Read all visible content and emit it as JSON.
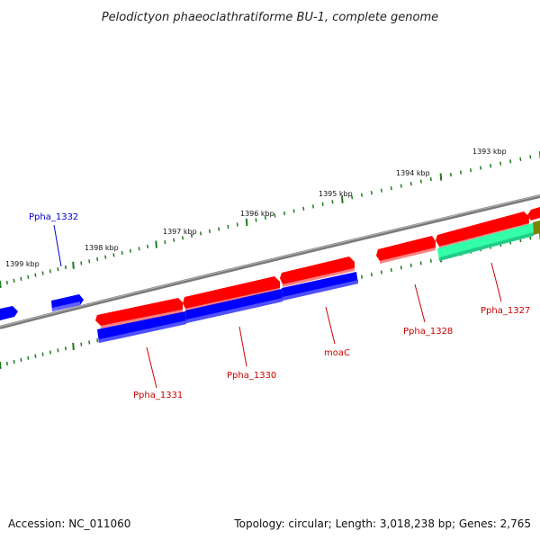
{
  "title": "Pelodictyon phaeoclathratiforme BU-1, complete genome",
  "footer": {
    "accession": "Accession: NC_011060",
    "summary": "Topology: circular; Length: 3,018,238 bp; Genes: 2,765"
  },
  "scale_labels": [
    "1399 kbp",
    "1398 kbp",
    "1397 kbp",
    "1396 kbp",
    "1395 kbp",
    "1394 kbp",
    "1393 kbp"
  ],
  "gene_labels": [
    "Ppha_1332",
    "Ppha_1331",
    "Ppha_1330",
    "moaC",
    "Ppha_1328",
    "Ppha_1327"
  ],
  "colors": {
    "backbone": "#808080",
    "tick": "#1f7a1f",
    "forward_gene": "#ff0000",
    "reverse_gene": "#0000ff",
    "rna_gene": "#33ffaa",
    "pseudo_gene": "#808000",
    "label_red": "#cc0000",
    "label_blue": "#0000cc"
  }
}
